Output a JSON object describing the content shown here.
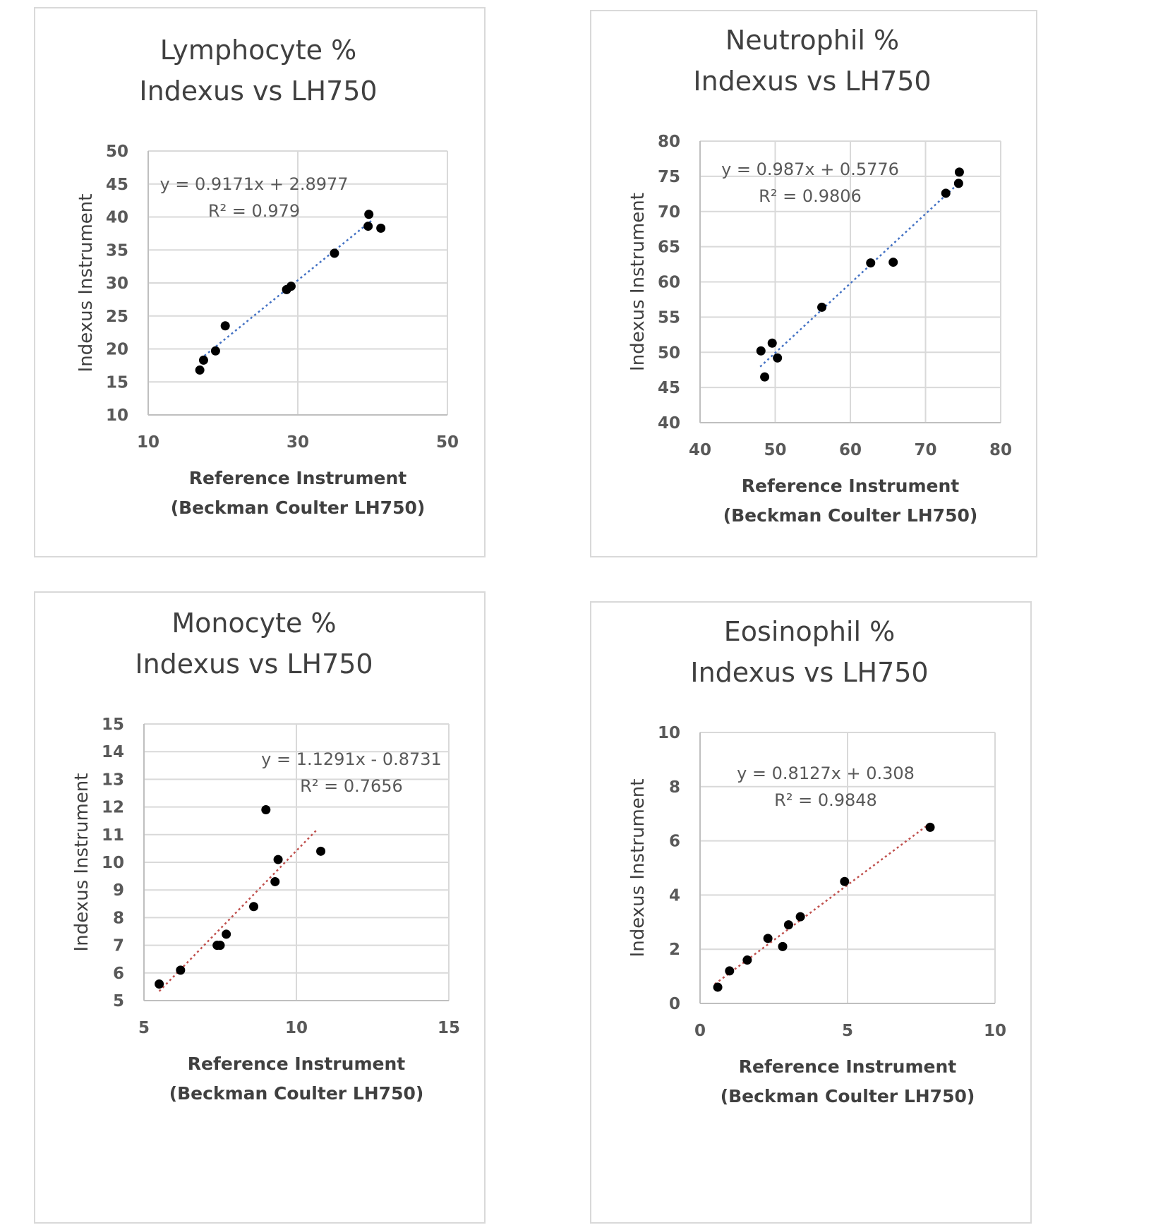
{
  "chart_data": [
    {
      "type": "scatter",
      "title": [
        "Lymphocyte %",
        "Indexus vs LH750"
      ],
      "xlabel": [
        "Reference Instrument",
        "(Beckman Coulter LH750)"
      ],
      "ylabel": "Indexus Instrument",
      "xlim": [
        10,
        50
      ],
      "xticks": [
        10,
        30,
        50
      ],
      "ylim": [
        10,
        50
      ],
      "yticks": [
        10,
        15,
        20,
        25,
        30,
        35,
        40,
        45,
        50
      ],
      "grid": true,
      "trendline": {
        "slope": 0.9171,
        "intercept": 2.8977,
        "color": "#4472c4",
        "x_range": [
          17,
          40
        ],
        "equation": "y = 0.9171x + 2.8977",
        "r2": "R² = 0.979"
      },
      "points": [
        [
          16.9,
          16.8
        ],
        [
          17.4,
          18.3
        ],
        [
          19.0,
          19.7
        ],
        [
          20.3,
          23.5
        ],
        [
          28.5,
          29.0
        ],
        [
          29.1,
          29.5
        ],
        [
          34.9,
          34.5
        ],
        [
          39.5,
          40.4
        ],
        [
          39.4,
          38.6
        ],
        [
          41.1,
          38.3
        ]
      ]
    },
    {
      "type": "scatter",
      "title": [
        "Neutrophil %",
        "Indexus vs LH750"
      ],
      "xlabel": [
        "Reference Instrument",
        "(Beckman Coulter LH750)"
      ],
      "ylabel": "Indexus Instrument",
      "xlim": [
        40,
        80
      ],
      "xticks": [
        40,
        50,
        60,
        70,
        80
      ],
      "ylim": [
        40,
        80
      ],
      "yticks": [
        40,
        45,
        50,
        55,
        60,
        65,
        70,
        75,
        80
      ],
      "grid": true,
      "trendline": {
        "slope": 0.987,
        "intercept": 0.5776,
        "color": "#4472c4",
        "x_range": [
          48,
          74.5
        ],
        "equation": "y = 0.987x + 0.5776",
        "r2": "R² = 0.9806"
      },
      "points": [
        [
          48.1,
          50.2
        ],
        [
          48.6,
          46.5
        ],
        [
          49.6,
          51.3
        ],
        [
          50.3,
          49.2
        ],
        [
          56.2,
          56.4
        ],
        [
          62.7,
          62.7
        ],
        [
          65.7,
          62.8
        ],
        [
          72.7,
          72.6
        ],
        [
          74.4,
          74.0
        ],
        [
          74.5,
          75.6
        ]
      ]
    },
    {
      "type": "scatter",
      "title": [
        "Monocyte %",
        "Indexus vs LH750"
      ],
      "xlabel": [
        "Reference Instrument",
        "(Beckman Coulter LH750)"
      ],
      "ylabel": "Indexus Instrument",
      "xlim": [
        5,
        15
      ],
      "xticks": [
        5,
        10,
        15
      ],
      "ylim": [
        5,
        15
      ],
      "yticks": [
        5,
        6,
        7,
        8,
        9,
        10,
        11,
        12,
        13,
        14,
        15
      ],
      "grid": true,
      "trendline": {
        "slope": 1.1291,
        "intercept": -0.8731,
        "color": "#c0504d",
        "x_range": [
          5.5,
          10.7
        ],
        "equation": "y = 1.1291x - 0.8731",
        "r2": "R² = 0.7656"
      },
      "points": [
        [
          5.5,
          5.6
        ],
        [
          6.2,
          6.1
        ],
        [
          7.4,
          7.0
        ],
        [
          7.5,
          7.0
        ],
        [
          7.7,
          7.4
        ],
        [
          8.6,
          8.4
        ],
        [
          9.0,
          11.9
        ],
        [
          9.3,
          9.3
        ],
        [
          9.4,
          10.1
        ],
        [
          10.8,
          10.4
        ]
      ]
    },
    {
      "type": "scatter",
      "title": [
        "Eosinophil %",
        "Indexus vs LH750"
      ],
      "xlabel": [
        "Reference Instrument",
        "(Beckman Coulter LH750)"
      ],
      "ylabel": "Indexus Instrument",
      "xlim": [
        0,
        10
      ],
      "xticks": [
        0,
        5,
        10
      ],
      "ylim": [
        0,
        10
      ],
      "yticks": [
        0,
        2,
        4,
        6,
        8,
        10
      ],
      "grid": true,
      "trendline": {
        "slope": 0.8127,
        "intercept": 0.308,
        "color": "#c0504d",
        "x_range": [
          0.5,
          7.8
        ],
        "equation": "y = 0.8127x + 0.308",
        "r2": "R² = 0.9848"
      },
      "points": [
        [
          0.6,
          0.6
        ],
        [
          1.0,
          1.2
        ],
        [
          1.6,
          1.6
        ],
        [
          2.3,
          2.4
        ],
        [
          2.8,
          2.1
        ],
        [
          3.0,
          2.9
        ],
        [
          3.4,
          3.2
        ],
        [
          4.9,
          4.5
        ],
        [
          7.8,
          6.5
        ]
      ]
    }
  ]
}
